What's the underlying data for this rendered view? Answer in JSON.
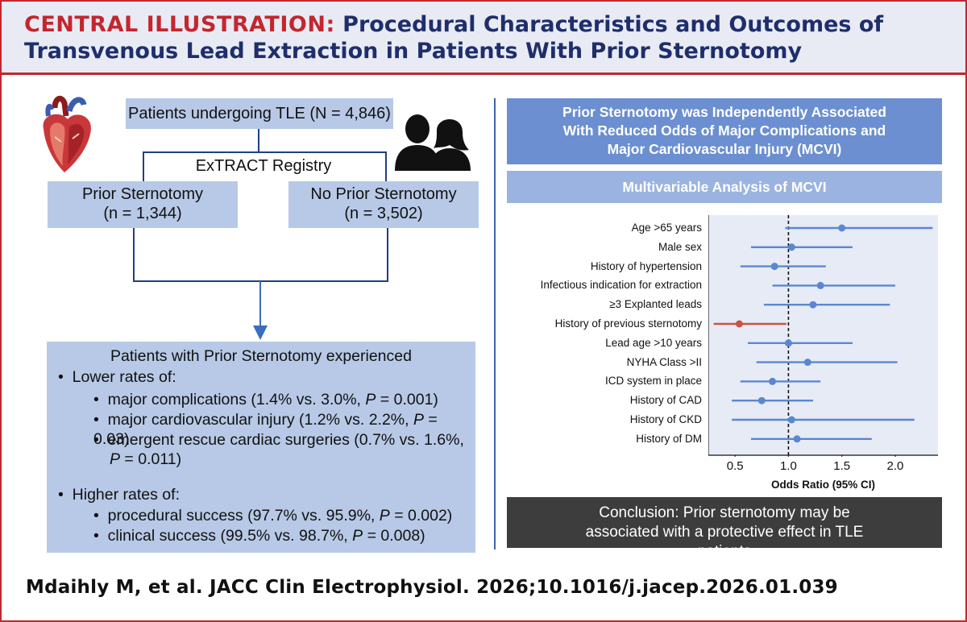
{
  "header": {
    "title_lead": "CENTRAL ILLUSTRATION:",
    "title_rest": " Procedural Characteristics and Outcomes of Transvenous Lead Extraction in Patients With Prior Sternotomy"
  },
  "left": {
    "top_box": "Patients undergoing TLE (N = 4,846)",
    "registry": "ExTRACT Registry",
    "prior": {
      "name": "Prior Sternotomy",
      "n": "(n = 1,344)"
    },
    "no_prior": {
      "name": "No Prior Sternotomy",
      "n": "(n = 3,502)"
    },
    "summary": {
      "title": "Patients with Prior Sternotomy experienced",
      "lower_heading": "Lower rates of:",
      "lower_items": [
        {
          "text": "major complications (1.4% vs. 3.0%, ",
          "p": "P",
          "tail": " = 0.001)"
        },
        {
          "text": "major cardiovascular injury (1.2% vs. 2.2%, ",
          "p": "P",
          "tail": " = 0.03)"
        },
        {
          "text": "emergent rescue cardiac surgeries (0.7% vs. 1.6%,",
          "p": "P",
          "tail": " = 0.011)"
        }
      ],
      "higher_heading": "Higher rates of:",
      "higher_items": [
        {
          "text": "procedural success (97.7% vs. 95.9%, ",
          "p": "P",
          "tail": " = 0.002)"
        },
        {
          "text": "clinical success (99.5% vs. 98.7%, ",
          "p": "P",
          "tail": " = 0.008)"
        }
      ]
    }
  },
  "right": {
    "headline": "Prior Sternotomy was Independently Associated With Reduced Odds of Major Complications and Major Cardiovascular Injury (MCVI)",
    "analysis_title": "Multivariable Analysis of MCVI",
    "conclusion": "Conclusion: Prior sternotomy may be associated with a protective effect in TLE patients"
  },
  "chart_data": {
    "type": "forest",
    "title": "Multivariable Analysis of MCVI",
    "xlabel": "Odds Ratio (95% CI)",
    "xlim": [
      0.25,
      2.4
    ],
    "xticks": [
      0.5,
      1.0,
      1.5,
      2.0
    ],
    "xtick_labels": [
      "0.5",
      "1.0",
      "1.5",
      "2.0"
    ],
    "reference_line": 1.0,
    "colors": {
      "normal": "#5b87cf",
      "highlight": "#c8553f",
      "panel": "#e6ebf6"
    },
    "rows": [
      {
        "label": "Age >65 years",
        "or": 1.5,
        "lo": 0.97,
        "hi": 2.35
      },
      {
        "label": "Male sex",
        "or": 1.03,
        "lo": 0.65,
        "hi": 1.6
      },
      {
        "label": "History of hypertension",
        "or": 0.87,
        "lo": 0.55,
        "hi": 1.35
      },
      {
        "label": "Infectious indication for extraction",
        "or": 1.3,
        "lo": 0.85,
        "hi": 2.0
      },
      {
        "label": "≥3 Explanted leads",
        "or": 1.23,
        "lo": 0.77,
        "hi": 1.95
      },
      {
        "label": "History of previous sternotomy",
        "or": 0.54,
        "lo": 0.3,
        "hi": 0.98,
        "highlight": true
      },
      {
        "label": "Lead age >10 years",
        "or": 1.0,
        "lo": 0.62,
        "hi": 1.6
      },
      {
        "label": "NYHA Class >II",
        "or": 1.18,
        "lo": 0.7,
        "hi": 2.02
      },
      {
        "label": "ICD system in place",
        "or": 0.85,
        "lo": 0.55,
        "hi": 1.3
      },
      {
        "label": "History of CAD",
        "or": 0.75,
        "lo": 0.47,
        "hi": 1.23
      },
      {
        "label": "History of CKD",
        "or": 1.03,
        "lo": 0.47,
        "hi": 2.18
      },
      {
        "label": "History of DM",
        "or": 1.08,
        "lo": 0.65,
        "hi": 1.78
      }
    ]
  },
  "citation": "Mdaihly M, et al. JACC Clin Electrophysiol. 2026;10.1016/j.jacep.2026.01.039"
}
